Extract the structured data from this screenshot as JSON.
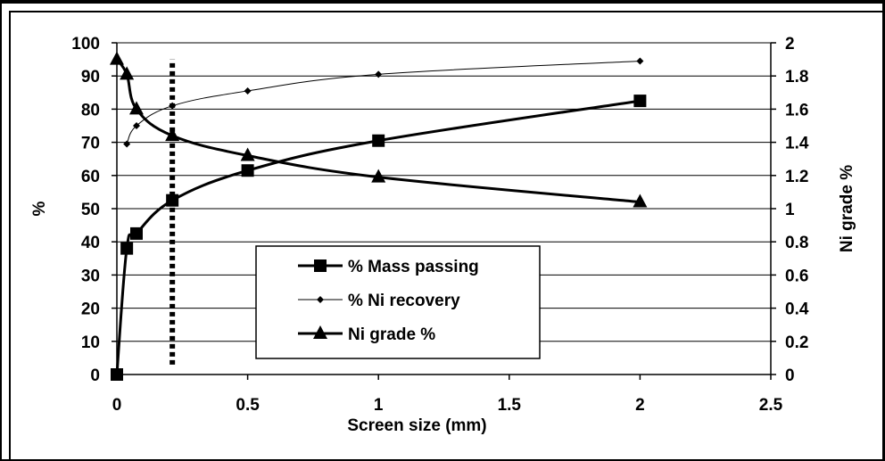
{
  "chart_data": {
    "type": "line",
    "xlabel": "Screen size (mm)",
    "ylabel": "%",
    "y2label": "Ni grade %",
    "xlim": [
      0,
      2.5
    ],
    "ylim": [
      0,
      100
    ],
    "y2lim": [
      0,
      2
    ],
    "xticks": [
      "0",
      "0.5",
      "1",
      "1.5",
      "2",
      "2.5"
    ],
    "yticks": [
      "0",
      "10",
      "20",
      "30",
      "40",
      "50",
      "60",
      "70",
      "80",
      "90",
      "100"
    ],
    "y2ticks": [
      "0",
      "0.2",
      "0.4",
      "0.6",
      "0.8",
      "1",
      "1.2",
      "1.4",
      "1.6",
      "1.8",
      "2"
    ],
    "grid": true,
    "legend_position": "bottom-center",
    "reference_line": {
      "x": 0.212,
      "y_from": 3,
      "y_to": 95,
      "style": "dotted"
    },
    "series": [
      {
        "name": "% Mass passing",
        "axis": "left",
        "marker": "square",
        "x": [
          0,
          0.038,
          0.075,
          0.212,
          0.5,
          1,
          2
        ],
        "y": [
          0,
          38,
          42.5,
          52.5,
          61.5,
          70.5,
          82.5
        ]
      },
      {
        "name": "% Ni recovery",
        "axis": "left",
        "marker": "diamond",
        "x": [
          0.038,
          0.075,
          0.212,
          0.5,
          1,
          2
        ],
        "y": [
          69.5,
          75,
          81,
          85.5,
          90.5,
          94.5
        ]
      },
      {
        "name": "Ni grade %",
        "axis": "right",
        "marker": "triangle",
        "x": [
          0,
          0.038,
          0.075,
          0.212,
          0.5,
          1,
          2
        ],
        "y": [
          1.9,
          1.81,
          1.6,
          1.44,
          1.32,
          1.19,
          1.04
        ]
      }
    ]
  }
}
